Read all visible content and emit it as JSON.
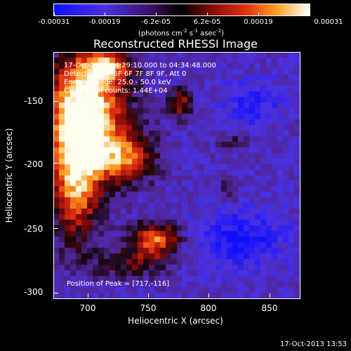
{
  "colorbar": {
    "labels": [
      "-0.00031",
      "-0.00019",
      "-6.2e-05",
      "6.2e-05",
      "0.00019",
      "0.00031"
    ],
    "units_prefix": "(photons cm",
    "units_sup1": "-2",
    "units_mid": " s",
    "units_sup2": "-1",
    "units_mid2": " asec",
    "units_sup3": "-2",
    "units_suffix": ")"
  },
  "title": "Reconstructed RHESSI Image",
  "annotation": {
    "line1": "17-Oct-2013 04:29:10.000 to 04:34:48.000",
    "line2": "Detectors: 3F 5F 6F 7F 8F 9F, Att 0",
    "line3": "Energy Range: 25.0 - 50.0 keV",
    "line4": "Clean   Total counts: 1.44E+04",
    "peak": "Position of Peak = [717,-116]"
  },
  "chart_data": {
    "type": "heatmap",
    "title": "Reconstructed RHESSI Image",
    "xlabel": "Heliocentric X (arcsec)",
    "ylabel": "Heliocentric Y (arcsec)",
    "xlim": [
      675,
      868
    ],
    "ylim": [
      -305,
      -112
    ],
    "xticks": [
      700,
      750,
      800,
      850
    ],
    "yticks": [
      -150,
      -200,
      -250,
      -300
    ],
    "colorbar_range": [
      -0.00031,
      0.00031
    ],
    "colors": {
      "low": "#1a1aff",
      "mid_low": "#5a2fb0",
      "zero": "#1a0a10",
      "mid_high": "#e23a1a",
      "high": "#ffffe0"
    }
  },
  "footer": "17-Oct-2013 13:53"
}
